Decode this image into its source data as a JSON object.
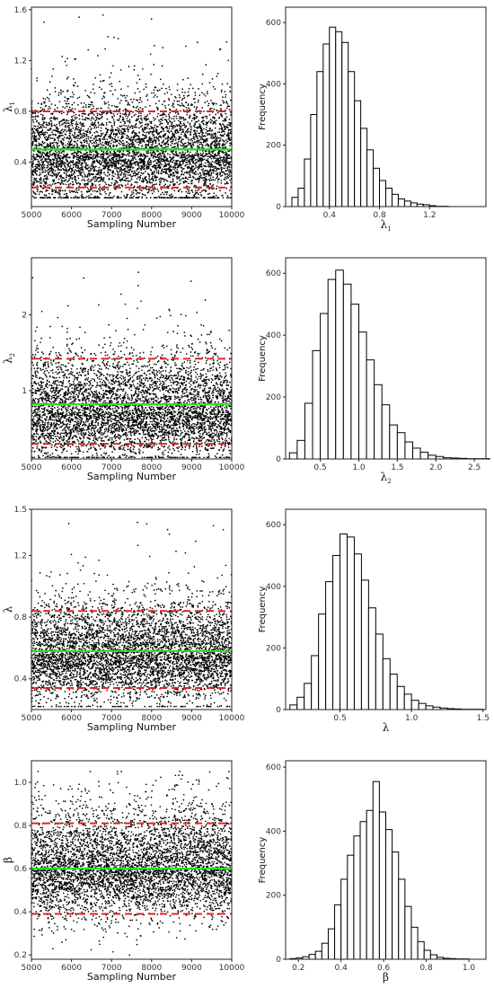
{
  "chart_data": [
    {
      "type": "scatter",
      "title": "",
      "xlabel": "Sampling Number",
      "ylabel": "λ",
      "ylabel_sub": "1",
      "xlim": [
        5000,
        10000
      ],
      "ylim": [
        0.05,
        1.62
      ],
      "xticks": [
        "5000",
        "6000",
        "7000",
        "8000",
        "9000",
        "10000"
      ],
      "xtick_values": [
        5000,
        6000,
        7000,
        8000,
        9000,
        10000
      ],
      "yticks": [
        "0.4",
        "0.8",
        "1.2",
        "1.6"
      ],
      "ytick_values": [
        0.4,
        0.8,
        1.2,
        1.6
      ],
      "posterior_mean": 0.5,
      "ci_lower": 0.2,
      "ci_upper": 0.8,
      "n_points": 5000,
      "point_center": 0.46,
      "point_spread": 0.18,
      "point_min": 0.12,
      "point_max": 1.56,
      "colors": {
        "points": "#000000",
        "mean_line": "#33dd22",
        "ci_lines": "#e62222"
      }
    },
    {
      "type": "bar",
      "title": "",
      "xlabel": "λ",
      "xlabel_sub": "1",
      "ylabel": "Frequency",
      "xlim": [
        0.05,
        1.65
      ],
      "ylim": [
        0,
        650
      ],
      "xticks": [
        "0.4",
        "0.8",
        "1.2"
      ],
      "xtick_values": [
        0.4,
        0.8,
        1.2
      ],
      "yticks": [
        "0",
        "200",
        "400",
        "600"
      ],
      "ytick_values": [
        0,
        200,
        400,
        600
      ],
      "bin_start": 0.1,
      "bin_width": 0.05,
      "values": [
        30,
        60,
        155,
        300,
        440,
        530,
        585,
        570,
        535,
        440,
        345,
        255,
        185,
        125,
        85,
        60,
        40,
        25,
        18,
        12,
        8,
        6,
        3,
        1,
        1
      ]
    },
    {
      "type": "scatter",
      "title": "",
      "xlabel": "Sampling Number",
      "ylabel": "λ",
      "ylabel_sub": "2",
      "xlim": [
        5000,
        10000
      ],
      "ylim": [
        0.1,
        2.75
      ],
      "xticks": [
        "5000",
        "6000",
        "7000",
        "8000",
        "9000",
        "10000"
      ],
      "xtick_values": [
        5000,
        6000,
        7000,
        8000,
        9000,
        10000
      ],
      "yticks": [
        "1",
        "2"
      ],
      "ytick_values": [
        1,
        2
      ],
      "posterior_mean": 0.82,
      "ci_lower": 0.3,
      "ci_upper": 1.42,
      "n_points": 5000,
      "point_center": 0.72,
      "point_spread": 0.3,
      "point_min": 0.12,
      "point_max": 2.6,
      "colors": {
        "points": "#000000",
        "mean_line": "#33dd22",
        "ci_lines": "#e62222"
      }
    },
    {
      "type": "bar",
      "title": "",
      "xlabel": "λ",
      "xlabel_sub": "2",
      "ylabel": "Frequency",
      "xlim": [
        0.05,
        2.65
      ],
      "ylim": [
        0,
        650
      ],
      "xticks": [
        "0.5",
        "1.0",
        "1.5",
        "2.0",
        "2.5"
      ],
      "xtick_values": [
        0.5,
        1.0,
        1.5,
        2.0,
        2.5
      ],
      "yticks": [
        "0",
        "200",
        "400",
        "600"
      ],
      "ytick_values": [
        0,
        200,
        400,
        600
      ],
      "bin_start": 0.1,
      "bin_width": 0.1,
      "values": [
        20,
        60,
        180,
        350,
        470,
        580,
        610,
        565,
        500,
        410,
        320,
        240,
        175,
        110,
        85,
        55,
        35,
        22,
        12,
        8,
        4,
        3,
        2,
        1,
        1,
        1
      ]
    },
    {
      "type": "scatter",
      "title": "",
      "xlabel": "Sampling Number",
      "ylabel": "λ",
      "xlim": [
        5000,
        10000
      ],
      "ylim": [
        0.2,
        1.5
      ],
      "xticks": [
        "5000",
        "6000",
        "7000",
        "8000",
        "9000",
        "10000"
      ],
      "xtick_values": [
        5000,
        6000,
        7000,
        8000,
        9000,
        10000
      ],
      "yticks": [
        "0.4",
        "0.8",
        "1.2",
        "1.5"
      ],
      "ytick_values": [
        0.4,
        0.8,
        1.2,
        1.5
      ],
      "posterior_mean": 0.58,
      "ci_lower": 0.34,
      "ci_upper": 0.84,
      "n_points": 5000,
      "point_center": 0.55,
      "point_spread": 0.14,
      "point_min": 0.22,
      "point_max": 1.42,
      "colors": {
        "points": "#000000",
        "mean_line": "#33dd22",
        "ci_lines": "#e62222"
      }
    },
    {
      "type": "bar",
      "title": "",
      "xlabel": "λ",
      "ylabel": "Frequency",
      "xlim": [
        0.12,
        1.52
      ],
      "ylim": [
        0,
        650
      ],
      "xticks": [
        "0.5",
        "1.0",
        "1.5"
      ],
      "xtick_values": [
        0.5,
        1.0,
        1.5
      ],
      "yticks": [
        "0",
        "200",
        "400",
        "600"
      ],
      "ytick_values": [
        0,
        200,
        400,
        600
      ],
      "bin_start": 0.15,
      "bin_width": 0.05,
      "values": [
        15,
        40,
        85,
        175,
        310,
        415,
        500,
        570,
        560,
        505,
        420,
        330,
        245,
        165,
        115,
        75,
        50,
        30,
        20,
        12,
        8,
        5,
        3,
        2,
        1,
        1,
        1
      ]
    },
    {
      "type": "scatter",
      "title": "",
      "xlabel": "Sampling Number",
      "ylabel": "β",
      "xlim": [
        5000,
        10000
      ],
      "ylim": [
        0.18,
        1.1
      ],
      "xticks": [
        "5000",
        "6000",
        "7000",
        "8000",
        "9000",
        "10000"
      ],
      "xtick_values": [
        5000,
        6000,
        7000,
        8000,
        9000,
        10000
      ],
      "yticks": [
        "0.2",
        "0.4",
        "0.6",
        "0.8",
        "1.0"
      ],
      "ytick_values": [
        0.2,
        0.4,
        0.6,
        0.8,
        1.0
      ],
      "posterior_mean": 0.6,
      "ci_lower": 0.39,
      "ci_upper": 0.81,
      "n_points": 5000,
      "point_center": 0.6,
      "point_spread": 0.11,
      "point_min": 0.2,
      "point_max": 1.05,
      "colors": {
        "points": "#000000",
        "mean_line": "#33dd22",
        "ci_lines": "#e62222"
      }
    },
    {
      "type": "bar",
      "title": "",
      "xlabel": "β",
      "ylabel": "Frequency",
      "xlim": [
        0.14,
        1.08
      ],
      "ylim": [
        0,
        620
      ],
      "xticks": [
        "0.2",
        "0.4",
        "0.6",
        "0.8",
        "1.0"
      ],
      "xtick_values": [
        0.2,
        0.4,
        0.6,
        0.8,
        1.0
      ],
      "yticks": [
        "0",
        "200",
        "400",
        "600"
      ],
      "ytick_values": [
        0,
        200,
        400,
        600
      ],
      "bin_start": 0.16,
      "bin_width": 0.03,
      "values": [
        2,
        4,
        8,
        15,
        25,
        50,
        95,
        170,
        250,
        325,
        385,
        430,
        465,
        555,
        460,
        405,
        335,
        250,
        165,
        100,
        55,
        28,
        14,
        6,
        3,
        2,
        1,
        1
      ]
    }
  ]
}
